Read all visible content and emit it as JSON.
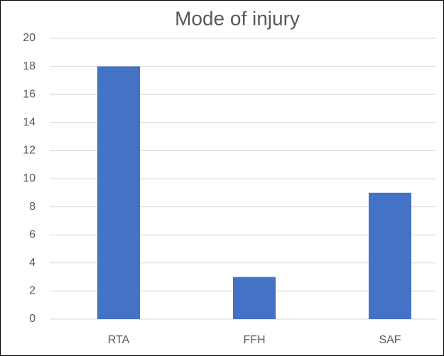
{
  "chart_data": {
    "type": "bar",
    "title": "Mode of injury",
    "categories": [
      "RTA",
      "FFH",
      "SAF"
    ],
    "values": [
      18,
      3,
      9
    ],
    "color": "#4472c4",
    "ylim": [
      0,
      20
    ],
    "yticks": [
      0,
      2,
      4,
      6,
      8,
      10,
      12,
      14,
      16,
      18,
      20
    ],
    "grid": true
  }
}
